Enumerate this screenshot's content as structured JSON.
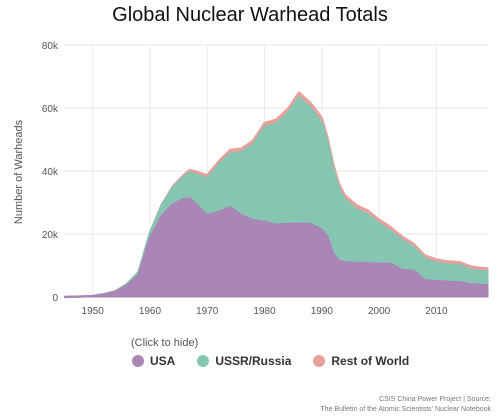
{
  "chart_data": {
    "type": "area",
    "stacked": true,
    "title": "Global Nuclear Warhead Totals",
    "ylabel": "Number of Warheads",
    "xlabel": "",
    "ylim": [
      0,
      80000
    ],
    "xlim": [
      1945,
      2019
    ],
    "y_ticks": [
      "0",
      "20k",
      "40k",
      "60k",
      "80k"
    ],
    "y_tick_values": [
      0,
      20000,
      40000,
      60000,
      80000
    ],
    "x_ticks": [
      "1950",
      "1960",
      "1970",
      "1980",
      "1990",
      "2000",
      "2010"
    ],
    "x_tick_values": [
      1950,
      1960,
      1970,
      1980,
      1990,
      2000,
      2010
    ],
    "grid": true,
    "legend_hint": "(Click to hide)",
    "x": [
      1945,
      1948,
      1950,
      1952,
      1954,
      1956,
      1958,
      1960,
      1962,
      1964,
      1966,
      1967,
      1968,
      1970,
      1972,
      1974,
      1976,
      1978,
      1980,
      1982,
      1984,
      1986,
      1988,
      1990,
      1991,
      1992,
      1993,
      1994,
      1996,
      1998,
      2000,
      2002,
      2004,
      2006,
      2008,
      2010,
      2012,
      2014,
      2016,
      2018,
      2019
    ],
    "series": [
      {
        "name": "USA",
        "color": "#a986b5",
        "values": [
          2,
          170,
          299,
          841,
          1703,
          3692,
          7000,
          18638,
          25540,
          29463,
          31139,
          31255,
          29561,
          26008,
          27000,
          28537,
          25956,
          24418,
          23915,
          22937,
          23228,
          23317,
          23205,
          21392,
          19008,
          13708,
          11511,
          10979,
          10904,
          10732,
          10577,
          10526,
          8570,
          8360,
          5273,
          5066,
          4804,
          4717,
          4018,
          3822,
          3800
        ]
      },
      {
        "name": "USSR/Russia",
        "color": "#86c5b2",
        "values": [
          0,
          0,
          5,
          50,
          150,
          426,
          869,
          1605,
          3322,
          5221,
          7089,
          8339,
          9399,
          11643,
          15000,
          17000,
          20000,
          24000,
          30062,
          32000,
          35000,
          40159,
          37000,
          34000,
          30000,
          27000,
          23000,
          20000,
          17000,
          15500,
          12800,
          10500,
          9500,
          7500,
          6900,
          5900,
          5500,
          5400,
          4700,
          4400,
          4300
        ]
      },
      {
        "name": "Rest of World",
        "color": "#e8a09a",
        "values": [
          0,
          0,
          0,
          2,
          10,
          30,
          50,
          150,
          300,
          500,
          700,
          800,
          900,
          1000,
          1100,
          1150,
          1200,
          1250,
          1300,
          1350,
          1400,
          1450,
          1480,
          1500,
          1480,
          1450,
          1400,
          1350,
          1300,
          1250,
          1200,
          1150,
          1100,
          1050,
          1000,
          1000,
          1000,
          1000,
          1000,
          1000,
          1000
        ]
      }
    ]
  },
  "source_lines": [
    "CSIS China Power Project | Source:",
    "The Bulletin of the Atomic Scientists' Nuclear Notebook"
  ]
}
